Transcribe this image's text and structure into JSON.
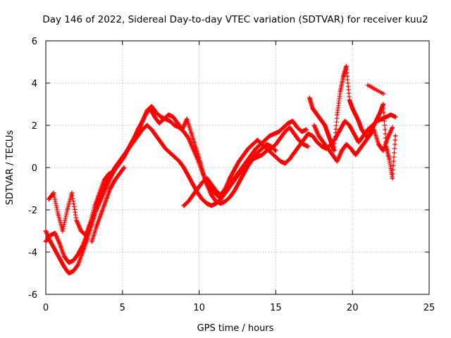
{
  "chart_data": {
    "type": "scatter",
    "title": "Day 146 of 2022, Sidereal Day-to-day VTEC variation (SDTVAR) for receiver kuu2",
    "xlabel": "GPS time / hours",
    "ylabel": "SDTVAR / TECUs",
    "xlim": [
      0,
      25
    ],
    "ylim": [
      -6,
      6
    ],
    "xticks": [
      "0",
      "5",
      "10",
      "15",
      "20",
      "25"
    ],
    "yticks": [
      "-6",
      "-4",
      "-2",
      "0",
      "2",
      "4",
      "6"
    ],
    "grid": true,
    "marker": "+",
    "color": "#ff0000",
    "series": [
      {
        "x": [
          0.0,
          0.3,
          0.6,
          0.9,
          1.2,
          1.5,
          1.8,
          2.1,
          2.4,
          2.7,
          3.0,
          3.3,
          3.6,
          3.9,
          4.2,
          4.5,
          4.8,
          5.1,
          5.4,
          5.7,
          6.0,
          6.3,
          6.6,
          6.9,
          7.2,
          7.5,
          7.8,
          8.1,
          8.4,
          8.7,
          9.0,
          9.3,
          9.6,
          9.9,
          10.2,
          10.5,
          10.8,
          11.1,
          11.4,
          11.7,
          12.0,
          12.3,
          12.6,
          12.9,
          13.2,
          13.5,
          13.8,
          14.1,
          14.4,
          14.7,
          15.0
        ],
        "y": [
          -3.0,
          -3.5,
          -3.9,
          -4.3,
          -4.7,
          -5.0,
          -4.9,
          -4.6,
          -4.0,
          -3.4,
          -2.7,
          -2.0,
          -1.5,
          -1.0,
          -0.5,
          -0.1,
          0.2,
          0.5,
          0.9,
          1.3,
          1.8,
          2.2,
          2.7,
          2.9,
          2.6,
          2.4,
          2.3,
          2.2,
          2.0,
          1.9,
          1.7,
          1.4,
          0.9,
          0.4,
          -0.2,
          -0.8,
          -1.3,
          -1.6,
          -1.7,
          -1.6,
          -1.4,
          -1.1,
          -0.7,
          -0.3,
          0.1,
          0.4,
          0.7,
          0.9,
          1.1,
          1.0,
          0.8
        ]
      },
      {
        "x": [
          0.0,
          0.3,
          0.6,
          0.9,
          1.2,
          1.5,
          1.8,
          2.1,
          2.4,
          2.7,
          3.0,
          3.3,
          3.6,
          3.9,
          4.2,
          4.5,
          4.8,
          5.1,
          5.4,
          5.7,
          6.0,
          6.3,
          6.6,
          6.9,
          7.2,
          7.5,
          7.8,
          8.1,
          8.4,
          8.7,
          9.0,
          9.3,
          9.6,
          9.9,
          10.2,
          10.5,
          10.8,
          11.1,
          11.4,
          11.7,
          12.0,
          12.3,
          12.6,
          12.9,
          13.2,
          13.5,
          13.8,
          14.1,
          14.4,
          14.7,
          15.0,
          15.3,
          15.6,
          15.9,
          16.2,
          16.5,
          16.8,
          17.1
        ],
        "y": [
          -3.5,
          -3.2,
          -3.1,
          -3.6,
          -4.2,
          -4.5,
          -4.4,
          -4.1,
          -3.7,
          -3.1,
          -2.5,
          -1.9,
          -1.3,
          -0.8,
          -0.4,
          0.0,
          0.3,
          0.6,
          0.9,
          1.2,
          1.5,
          1.8,
          2.0,
          1.8,
          1.5,
          1.2,
          0.9,
          0.7,
          0.5,
          0.3,
          0.0,
          -0.4,
          -0.8,
          -1.2,
          -1.5,
          -1.7,
          -1.8,
          -1.7,
          -1.5,
          -1.2,
          -0.9,
          -0.6,
          -0.3,
          0.0,
          0.2,
          0.4,
          0.5,
          0.6,
          0.8,
          0.9,
          1.1,
          1.4,
          1.7,
          1.9,
          1.6,
          1.3,
          1.1,
          1.0
        ]
      },
      {
        "x": [
          0.2,
          0.5,
          0.8,
          1.1,
          1.4,
          1.7,
          2.0,
          2.3,
          2.6,
          2.9,
          3.2,
          3.5,
          3.8,
          4.1,
          4.4,
          4.7,
          5.0,
          5.3,
          5.6,
          5.9,
          6.2,
          6.5,
          6.8,
          7.1,
          7.4,
          7.7,
          8.0,
          8.3,
          8.6,
          8.9,
          9.2,
          9.5,
          9.8,
          10.1,
          10.4,
          10.7,
          11.0,
          11.3,
          11.6,
          11.9,
          12.2,
          12.5,
          12.8,
          13.1,
          13.4,
          13.7,
          14.0,
          14.3,
          14.6,
          14.9,
          15.2,
          15.5,
          15.8,
          16.1,
          16.4,
          16.7,
          17.0
        ],
        "y": [
          -1.5,
          -1.2,
          -2.2,
          -3.0,
          -2.0,
          -1.2,
          -2.5,
          -3.0,
          -3.2,
          -2.6,
          -1.8,
          -1.2,
          -0.6,
          -0.3,
          -0.2,
          0.1,
          0.4,
          0.8,
          1.2,
          1.6,
          2.0,
          2.5,
          2.8,
          2.4,
          2.1,
          2.3,
          2.5,
          2.4,
          2.1,
          1.8,
          2.3,
          1.6,
          0.9,
          0.2,
          -0.6,
          -1.0,
          -1.2,
          -1.4,
          -1.3,
          -1.0,
          -0.6,
          -0.3,
          0.0,
          0.3,
          0.6,
          0.9,
          1.1,
          1.3,
          1.5,
          1.6,
          1.7,
          1.9,
          2.1,
          2.2,
          1.9,
          1.7,
          1.8
        ]
      },
      {
        "x": [
          9.0,
          9.3,
          9.6,
          9.9,
          10.2,
          10.5,
          10.8,
          11.1,
          11.4,
          11.7,
          12.0,
          12.3,
          12.6,
          12.9,
          13.2,
          13.5,
          13.8,
          14.1,
          14.4,
          14.7,
          15.0,
          15.3,
          15.6,
          15.9,
          16.2,
          16.5,
          16.8,
          17.1,
          17.4,
          17.7,
          18.0,
          18.3,
          18.6,
          18.9,
          19.2,
          19.5,
          19.8,
          20.1,
          20.4,
          20.7,
          21.0,
          21.3,
          21.6,
          21.9,
          22.2,
          22.5,
          22.8
        ],
        "y": [
          -1.8,
          -1.6,
          -1.3,
          -1.0,
          -0.7,
          -0.5,
          -0.8,
          -1.1,
          -1.3,
          -1.0,
          -0.5,
          -0.1,
          0.3,
          0.6,
          0.9,
          1.1,
          1.3,
          1.1,
          0.9,
          0.7,
          0.5,
          0.3,
          0.2,
          0.4,
          0.7,
          1.0,
          1.3,
          1.6,
          1.5,
          1.2,
          1.0,
          0.9,
          1.1,
          1.4,
          1.8,
          2.2,
          2.0,
          1.6,
          1.2,
          1.5,
          1.8,
          2.0,
          2.2,
          2.3,
          2.4,
          2.5,
          2.4
        ]
      },
      {
        "x": [
          17.2,
          17.4,
          17.6,
          17.8,
          18.0,
          18.2,
          18.4,
          18.6,
          18.8,
          19.0,
          19.2,
          19.4,
          19.6,
          19.8,
          20.0,
          20.2,
          20.4,
          20.6,
          20.8,
          21.0,
          21.2,
          21.4,
          21.6,
          21.8,
          22.0,
          22.2,
          22.4,
          22.6,
          22.8
        ],
        "y": [
          3.3,
          2.8,
          2.6,
          2.4,
          2.2,
          2.0,
          1.6,
          1.2,
          0.8,
          2.5,
          3.6,
          4.3,
          4.8,
          3.2,
          2.8,
          2.5,
          2.2,
          1.8,
          1.6,
          1.4,
          1.7,
          2.0,
          2.3,
          2.6,
          3.0,
          1.0,
          0.4,
          -0.5,
          1.5
        ]
      },
      {
        "x": [
          17.5,
          17.8,
          18.1,
          18.4,
          18.7,
          19.0,
          19.3,
          19.6,
          19.9,
          20.2,
          20.5,
          20.8,
          21.1,
          21.4,
          21.7,
          22.0,
          22.3,
          22.6
        ],
        "y": [
          2.0,
          1.5,
          1.2,
          0.9,
          0.6,
          0.3,
          0.8,
          1.1,
          0.9,
          0.6,
          0.9,
          1.2,
          1.5,
          1.8,
          1.1,
          0.8,
          1.4,
          1.9
        ]
      },
      {
        "x": [
          3.0,
          3.3,
          3.6,
          3.9,
          4.2,
          4.5,
          4.8,
          5.1
        ],
        "y": [
          -3.5,
          -2.8,
          -2.2,
          -1.6,
          -1.0,
          -0.6,
          -0.3,
          0.0
        ]
      },
      {
        "x": [
          21.0,
          22.0
        ],
        "y": [
          3.9,
          3.5
        ]
      }
    ]
  }
}
